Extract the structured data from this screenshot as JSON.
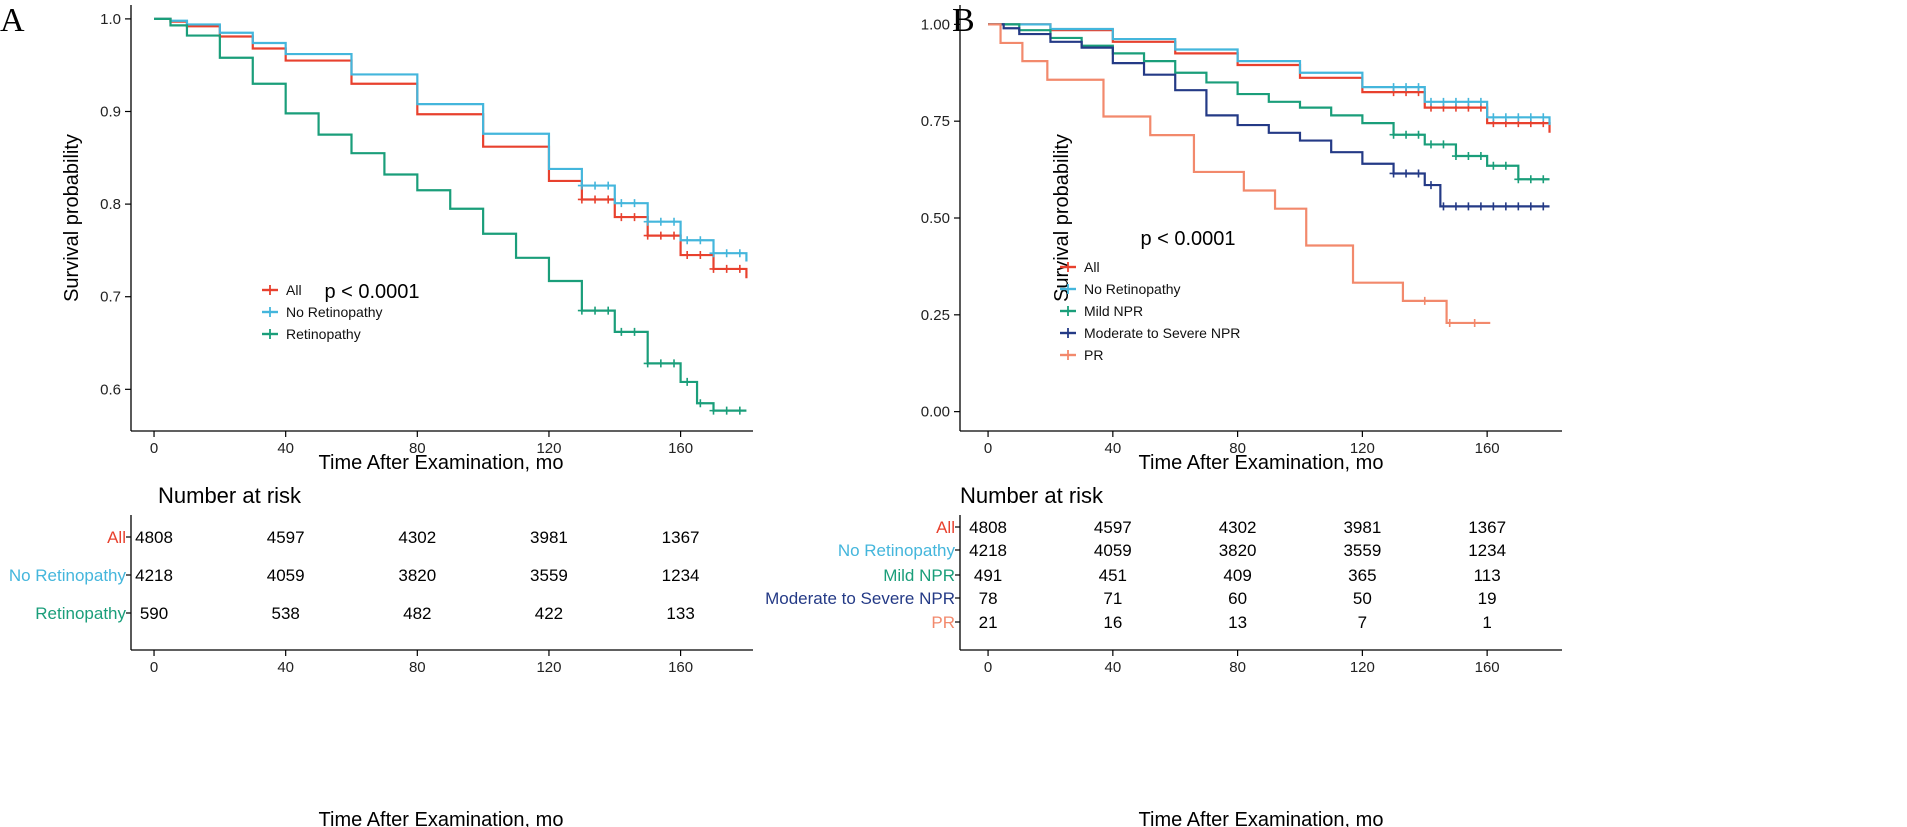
{
  "chart_data": [
    {
      "type": "line",
      "panel": "A",
      "xlabel": "Time After Examination, mo",
      "ylabel": "Survival probability",
      "xticks": [
        "0",
        "40",
        "80",
        "120",
        "160"
      ],
      "xlim": [
        -7,
        182
      ],
      "yticks": [
        "0.6",
        "0.7",
        "0.8",
        "0.9",
        "1.0"
      ],
      "ylim": [
        0.555,
        1.015
      ],
      "pvalue": "p < 0.0001",
      "series": [
        {
          "name": "All",
          "color": "#e8412e",
          "x": [
            0,
            5,
            10,
            20,
            30,
            40,
            60,
            80,
            100,
            120,
            130,
            140,
            150,
            160,
            170,
            180
          ],
          "y": [
            1.0,
            0.997,
            0.992,
            0.981,
            0.968,
            0.955,
            0.93,
            0.897,
            0.862,
            0.825,
            0.805,
            0.786,
            0.766,
            0.745,
            0.73,
            0.72
          ]
        },
        {
          "name": "No Retinopathy",
          "color": "#44b6dc",
          "x": [
            0,
            5,
            10,
            20,
            30,
            40,
            60,
            80,
            100,
            120,
            130,
            140,
            150,
            160,
            170,
            180
          ],
          "y": [
            1.0,
            0.998,
            0.994,
            0.985,
            0.974,
            0.962,
            0.94,
            0.908,
            0.876,
            0.838,
            0.82,
            0.801,
            0.781,
            0.761,
            0.747,
            0.738
          ]
        },
        {
          "name": "Retinopathy",
          "color": "#1a9e7a",
          "x": [
            0,
            5,
            10,
            20,
            30,
            40,
            50,
            60,
            70,
            80,
            90,
            100,
            110,
            120,
            130,
            140,
            150,
            160,
            165,
            170,
            180
          ],
          "y": [
            1.0,
            0.993,
            0.982,
            0.958,
            0.93,
            0.898,
            0.875,
            0.855,
            0.832,
            0.815,
            0.795,
            0.768,
            0.742,
            0.717,
            0.685,
            0.662,
            0.628,
            0.608,
            0.585,
            0.577,
            0.577
          ]
        }
      ],
      "risk_table": {
        "title": "Number at risk",
        "times": [
          "0",
          "40",
          "80",
          "120",
          "160"
        ],
        "rows": [
          {
            "name": "All",
            "color": "#e8412e",
            "values": [
              "4808",
              "4597",
              "4302",
              "3981",
              "1367"
            ]
          },
          {
            "name": "No Retinopathy",
            "color": "#44b6dc",
            "values": [
              "4218",
              "4059",
              "3820",
              "3559",
              "1234"
            ]
          },
          {
            "name": "Retinopathy",
            "color": "#1a9e7a",
            "values": [
              "590",
              "538",
              "482",
              "422",
              "133"
            ]
          }
        ],
        "xlabel": "Time After Examination, mo"
      }
    },
    {
      "type": "line",
      "panel": "B",
      "xlabel": "Time After Examination, mo",
      "ylabel": "Survival probability",
      "xticks": [
        "0",
        "40",
        "80",
        "120",
        "160"
      ],
      "xlim": [
        -9,
        184
      ],
      "yticks": [
        "0.00",
        "0.25",
        "0.50",
        "0.75",
        "1.00"
      ],
      "ylim": [
        -0.05,
        1.05
      ],
      "pvalue": "p < 0.0001",
      "series": [
        {
          "name": "All",
          "color": "#e8412e",
          "x": [
            0,
            20,
            40,
            60,
            80,
            100,
            120,
            140,
            160,
            180
          ],
          "y": [
            1.0,
            0.985,
            0.955,
            0.925,
            0.895,
            0.862,
            0.825,
            0.785,
            0.745,
            0.72
          ]
        },
        {
          "name": "No Retinopathy",
          "color": "#44b6dc",
          "x": [
            0,
            20,
            40,
            60,
            80,
            100,
            120,
            140,
            160,
            180
          ],
          "y": [
            1.0,
            0.988,
            0.962,
            0.935,
            0.905,
            0.875,
            0.838,
            0.8,
            0.76,
            0.74
          ]
        },
        {
          "name": "Mild NPR",
          "color": "#1a9e7a",
          "x": [
            0,
            10,
            20,
            30,
            40,
            50,
            60,
            70,
            80,
            90,
            100,
            110,
            120,
            130,
            140,
            150,
            160,
            170,
            180
          ],
          "y": [
            1.0,
            0.985,
            0.965,
            0.945,
            0.925,
            0.905,
            0.875,
            0.85,
            0.82,
            0.8,
            0.785,
            0.765,
            0.745,
            0.715,
            0.69,
            0.66,
            0.635,
            0.6,
            0.6
          ]
        },
        {
          "name": "Moderate to Severe NPR",
          "color": "#243a86",
          "x": [
            0,
            5,
            10,
            20,
            30,
            40,
            50,
            60,
            70,
            80,
            90,
            100,
            110,
            120,
            130,
            140,
            145,
            180
          ],
          "y": [
            1.0,
            0.99,
            0.975,
            0.955,
            0.94,
            0.9,
            0.87,
            0.83,
            0.765,
            0.74,
            0.72,
            0.7,
            0.67,
            0.64,
            0.615,
            0.585,
            0.53,
            0.53
          ]
        },
        {
          "name": "PR",
          "color": "#f2896c",
          "x": [
            0,
            4,
            11,
            19,
            37,
            52,
            66,
            82,
            92,
            102,
            117,
            133,
            147,
            161
          ],
          "y": [
            1.0,
            0.952,
            0.905,
            0.857,
            0.762,
            0.714,
            0.619,
            0.571,
            0.524,
            0.429,
            0.333,
            0.286,
            0.229,
            0.229
          ]
        }
      ],
      "risk_table": {
        "title": "Number at risk",
        "times": [
          "0",
          "40",
          "80",
          "120",
          "160"
        ],
        "rows": [
          {
            "name": "All",
            "color": "#e8412e",
            "values": [
              "4808",
              "4597",
              "4302",
              "3981",
              "1367"
            ]
          },
          {
            "name": "No Retinopathy",
            "color": "#44b6dc",
            "values": [
              "4218",
              "4059",
              "3820",
              "3559",
              "1234"
            ]
          },
          {
            "name": "Mild NPR",
            "color": "#1a9e7a",
            "values": [
              "491",
              "451",
              "409",
              "365",
              "113"
            ]
          },
          {
            "name": "Moderate to Severe NPR",
            "color": "#243a86",
            "values": [
              "78",
              "71",
              "60",
              "50",
              "19"
            ]
          },
          {
            "name": "PR",
            "color": "#f2896c",
            "values": [
              "21",
              "16",
              "13",
              "7",
              "1"
            ]
          }
        ],
        "xlabel": "Time After Examination, mo"
      }
    }
  ]
}
